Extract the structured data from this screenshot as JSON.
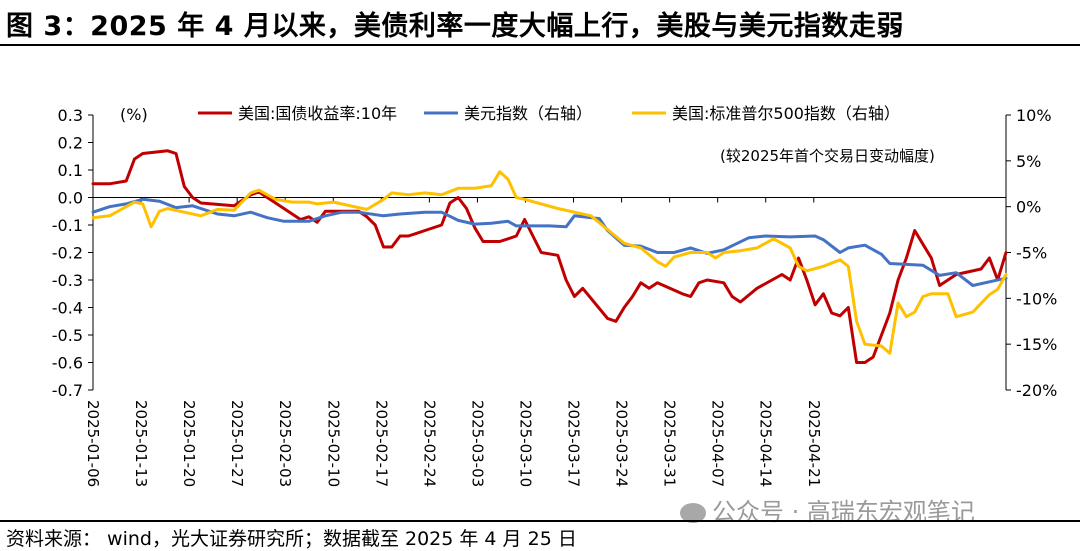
{
  "title": "图 3：2025 年 4 月以来，美债利率一度大幅上行，美股与美元指数走弱",
  "source": "资料来源： wind，光大证券研究所；数据截至 2025 年 4 月 25 日",
  "watermark": "公众号 · 高瑞东宏观笔记",
  "chart_data": {
    "type": "line",
    "left_unit": "(%)",
    "annotation": "(较2025年首个交易日变动幅度)",
    "y_left": {
      "ticks": [
        "0.3",
        "0.2",
        "0.1",
        "0.0",
        "-0.1",
        "-0.2",
        "-0.3",
        "-0.4",
        "-0.5",
        "-0.6",
        "-0.7"
      ],
      "range": [
        -0.7,
        0.3
      ]
    },
    "y_right": {
      "ticks": [
        "10%",
        "5%",
        "0%",
        "-5%",
        "-10%",
        "-15%",
        "-20%"
      ],
      "range": [
        -20,
        10
      ]
    },
    "x_ticks": [
      "2025-01-06",
      "2025-01-13",
      "2025-01-20",
      "2025-01-27",
      "2025-02-03",
      "2025-02-10",
      "2025-02-17",
      "2025-02-24",
      "2025-03-03",
      "2025-03-10",
      "2025-03-17",
      "2025-03-24",
      "2025-03-31",
      "2025-04-07",
      "2025-04-14",
      "2025-04-21"
    ],
    "x_range": [
      0,
      110
    ],
    "series": [
      {
        "name": "美国:国债收益率:10年",
        "axis": "left",
        "color": "#c00000",
        "points": [
          [
            0,
            0.05
          ],
          [
            2,
            0.05
          ],
          [
            4,
            0.06
          ],
          [
            5,
            0.14
          ],
          [
            6,
            0.16
          ],
          [
            9,
            0.17
          ],
          [
            10,
            0.16
          ],
          [
            11,
            0.04
          ],
          [
            12,
            0.0
          ],
          [
            13,
            -0.02
          ],
          [
            17,
            -0.03
          ],
          [
            19,
            0.01
          ],
          [
            20,
            0.02
          ],
          [
            22,
            -0.02
          ],
          [
            23,
            -0.04
          ],
          [
            25,
            -0.08
          ],
          [
            26,
            -0.07
          ],
          [
            27,
            -0.09
          ],
          [
            28,
            -0.05
          ],
          [
            32,
            -0.05
          ],
          [
            33,
            -0.07
          ],
          [
            34,
            -0.1
          ],
          [
            35,
            -0.18
          ],
          [
            36,
            -0.18
          ],
          [
            37,
            -0.14
          ],
          [
            38,
            -0.14
          ],
          [
            39,
            -0.13
          ],
          [
            40,
            -0.12
          ],
          [
            42,
            -0.1
          ],
          [
            43,
            -0.02
          ],
          [
            44,
            0.0
          ],
          [
            45,
            -0.04
          ],
          [
            46,
            -0.11
          ],
          [
            47,
            -0.16
          ],
          [
            49,
            -0.16
          ],
          [
            50,
            -0.15
          ],
          [
            51,
            -0.14
          ],
          [
            52,
            -0.08
          ],
          [
            54,
            -0.2
          ],
          [
            56,
            -0.21
          ],
          [
            57,
            -0.3
          ],
          [
            58,
            -0.36
          ],
          [
            59,
            -0.33
          ],
          [
            62,
            -0.44
          ],
          [
            63,
            -0.45
          ],
          [
            64,
            -0.4
          ],
          [
            65,
            -0.36
          ],
          [
            66,
            -0.31
          ],
          [
            67,
            -0.33
          ],
          [
            68,
            -0.31
          ],
          [
            71,
            -0.35
          ],
          [
            72,
            -0.36
          ],
          [
            73,
            -0.31
          ],
          [
            74,
            -0.3
          ],
          [
            76,
            -0.31
          ],
          [
            77,
            -0.36
          ],
          [
            78,
            -0.38
          ],
          [
            80,
            -0.33
          ],
          [
            83,
            -0.28
          ],
          [
            84,
            -0.3
          ],
          [
            85,
            -0.22
          ],
          [
            86,
            -0.3
          ],
          [
            87,
            -0.39
          ],
          [
            88,
            -0.35
          ],
          [
            89,
            -0.42
          ],
          [
            90,
            -0.43
          ],
          [
            91,
            -0.4
          ],
          [
            92,
            -0.6
          ],
          [
            93,
            -0.6
          ],
          [
            94,
            -0.58
          ],
          [
            95,
            -0.5
          ],
          [
            96,
            -0.42
          ],
          [
            97,
            -0.3
          ],
          [
            98,
            -0.22
          ],
          [
            99,
            -0.12
          ],
          [
            100,
            -0.17
          ],
          [
            101,
            -0.22
          ],
          [
            102,
            -0.32
          ],
          [
            103,
            -0.3
          ],
          [
            104,
            -0.28
          ],
          [
            107,
            -0.26
          ],
          [
            108,
            -0.22
          ],
          [
            109,
            -0.3
          ],
          [
            110,
            -0.2
          ]
        ]
      },
      {
        "name": "美元指数（右轴）",
        "axis": "right",
        "color": "#4472c4",
        "points": [
          [
            0,
            -0.6
          ],
          [
            2,
            0.0
          ],
          [
            4,
            0.3
          ],
          [
            6,
            0.8
          ],
          [
            8,
            0.6
          ],
          [
            10,
            -0.1
          ],
          [
            12,
            0.1
          ],
          [
            15,
            -0.8
          ],
          [
            17,
            -1.0
          ],
          [
            19,
            -0.6
          ],
          [
            21,
            -1.2
          ],
          [
            23,
            -1.6
          ],
          [
            26,
            -1.6
          ],
          [
            28,
            -1.0
          ],
          [
            30,
            -0.6
          ],
          [
            32,
            -0.6
          ],
          [
            35,
            -1.0
          ],
          [
            37,
            -0.8
          ],
          [
            40,
            -0.6
          ],
          [
            42,
            -0.6
          ],
          [
            44,
            -1.5
          ],
          [
            46,
            -1.9
          ],
          [
            48,
            -1.8
          ],
          [
            50,
            -1.6
          ],
          [
            51,
            -2.1
          ],
          [
            54,
            -2.1
          ],
          [
            55,
            -2.1
          ],
          [
            57,
            -2.2
          ],
          [
            58,
            -1.0
          ],
          [
            61,
            -1.3
          ],
          [
            62,
            -2.6
          ],
          [
            64,
            -4.2
          ],
          [
            66,
            -4.3
          ],
          [
            68,
            -5.0
          ],
          [
            70,
            -5.0
          ],
          [
            72,
            -4.5
          ],
          [
            74,
            -5.1
          ],
          [
            76,
            -4.7
          ],
          [
            79,
            -3.4
          ],
          [
            81,
            -3.2
          ],
          [
            84,
            -3.3
          ],
          [
            87,
            -3.2
          ],
          [
            88,
            -3.6
          ],
          [
            90,
            -5.0
          ],
          [
            91,
            -4.5
          ],
          [
            93,
            -4.2
          ],
          [
            95,
            -5.2
          ],
          [
            96,
            -6.2
          ],
          [
            98,
            -6.3
          ],
          [
            100,
            -6.4
          ],
          [
            102,
            -7.5
          ],
          [
            104,
            -7.2
          ],
          [
            106,
            -8.6
          ],
          [
            108,
            -8.2
          ],
          [
            110,
            -7.8
          ]
        ]
      },
      {
        "name": "美国:标准普尔500指数（右轴）",
        "axis": "right",
        "color": "#ffc000",
        "points": [
          [
            0,
            -1.2
          ],
          [
            2,
            -1.0
          ],
          [
            5,
            0.5
          ],
          [
            6,
            0.3
          ],
          [
            7,
            -2.2
          ],
          [
            8,
            -0.5
          ],
          [
            9,
            -0.2
          ],
          [
            11,
            -0.6
          ],
          [
            13,
            -1.0
          ],
          [
            15,
            -0.3
          ],
          [
            17,
            -0.4
          ],
          [
            19,
            1.5
          ],
          [
            20,
            1.8
          ],
          [
            22,
            0.8
          ],
          [
            24,
            0.5
          ],
          [
            26,
            0.5
          ],
          [
            27,
            0.3
          ],
          [
            29,
            0.5
          ],
          [
            31,
            0.1
          ],
          [
            33,
            -0.3
          ],
          [
            35,
            0.8
          ],
          [
            36,
            1.5
          ],
          [
            38,
            1.3
          ],
          [
            40,
            1.5
          ],
          [
            42,
            1.3
          ],
          [
            44,
            2.0
          ],
          [
            46,
            2.0
          ],
          [
            48,
            2.3
          ],
          [
            49,
            3.8
          ],
          [
            50,
            3.0
          ],
          [
            51,
            1.0
          ],
          [
            52,
            0.8
          ],
          [
            54,
            0.3
          ],
          [
            56,
            -0.2
          ],
          [
            58,
            -0.6
          ],
          [
            60,
            -1.0
          ],
          [
            62,
            -2.5
          ],
          [
            64,
            -4.0
          ],
          [
            66,
            -4.5
          ],
          [
            68,
            -6.0
          ],
          [
            69,
            -6.5
          ],
          [
            70,
            -5.5
          ],
          [
            72,
            -5.0
          ],
          [
            74,
            -5.0
          ],
          [
            75,
            -5.6
          ],
          [
            76,
            -5.0
          ],
          [
            78,
            -4.8
          ],
          [
            80,
            -4.5
          ],
          [
            82,
            -3.5
          ],
          [
            84,
            -4.5
          ],
          [
            85,
            -6.5
          ],
          [
            86,
            -7.0
          ],
          [
            88,
            -6.5
          ],
          [
            90,
            -5.8
          ],
          [
            91,
            -6.5
          ],
          [
            92,
            -12.5
          ],
          [
            93,
            -15.0
          ],
          [
            95,
            -15.2
          ],
          [
            96,
            -16.0
          ],
          [
            97,
            -10.5
          ],
          [
            98,
            -12.0
          ],
          [
            99,
            -11.5
          ],
          [
            100,
            -9.8
          ],
          [
            101,
            -9.5
          ],
          [
            103,
            -9.5
          ],
          [
            104,
            -12.0
          ],
          [
            106,
            -11.5
          ],
          [
            108,
            -9.6
          ],
          [
            109,
            -9.0
          ],
          [
            110,
            -7.4
          ]
        ]
      }
    ]
  }
}
